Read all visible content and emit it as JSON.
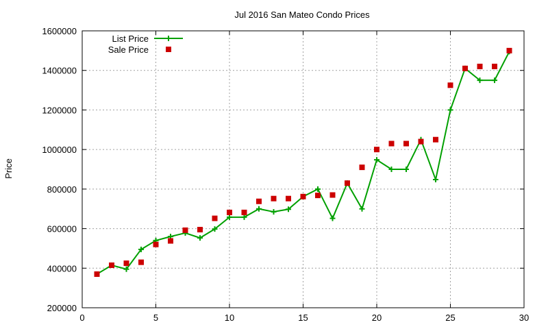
{
  "chart_data": {
    "type": "line",
    "title": "Jul 2016 San Mateo Condo Prices",
    "xlabel": "",
    "ylabel": "Price",
    "xlim": [
      0,
      30
    ],
    "ylim": [
      200000,
      1600000
    ],
    "xticks": [
      0,
      5,
      10,
      15,
      20,
      25,
      30
    ],
    "yticks": [
      200000,
      400000,
      600000,
      800000,
      1000000,
      1200000,
      1400000,
      1600000
    ],
    "grid": true,
    "legend_position": "top-left",
    "series": [
      {
        "name": "List Price",
        "style": "line+cross",
        "color": "#00a000",
        "x": [
          1,
          2,
          3,
          4,
          5,
          6,
          7,
          8,
          9,
          10,
          11,
          12,
          13,
          14,
          15,
          16,
          17,
          18,
          19,
          20,
          21,
          22,
          23,
          24,
          25,
          26,
          27,
          28,
          29
        ],
        "values": [
          370000,
          415000,
          395000,
          495000,
          540000,
          560000,
          578000,
          553000,
          598000,
          658000,
          658000,
          700000,
          685000,
          698000,
          762000,
          800000,
          652000,
          830000,
          700000,
          948000,
          900000,
          900000,
          1050000,
          848000,
          1200000,
          1410000,
          1350000,
          1350000,
          1495000
        ]
      },
      {
        "name": "Sale Price",
        "style": "square",
        "color": "#cc0000",
        "x": [
          1,
          2,
          3,
          4,
          5,
          6,
          7,
          8,
          9,
          10,
          11,
          12,
          13,
          14,
          15,
          16,
          17,
          18,
          19,
          20,
          21,
          22,
          23,
          24,
          25,
          26,
          27,
          28,
          29
        ],
        "values": [
          370000,
          415000,
          425000,
          430000,
          520000,
          538000,
          592000,
          595000,
          652000,
          682000,
          682000,
          738000,
          752000,
          752000,
          762000,
          768000,
          770000,
          830000,
          910000,
          1000000,
          1030000,
          1030000,
          1040000,
          1050000,
          1325000,
          1410000,
          1420000,
          1420000,
          1500000
        ]
      }
    ]
  }
}
